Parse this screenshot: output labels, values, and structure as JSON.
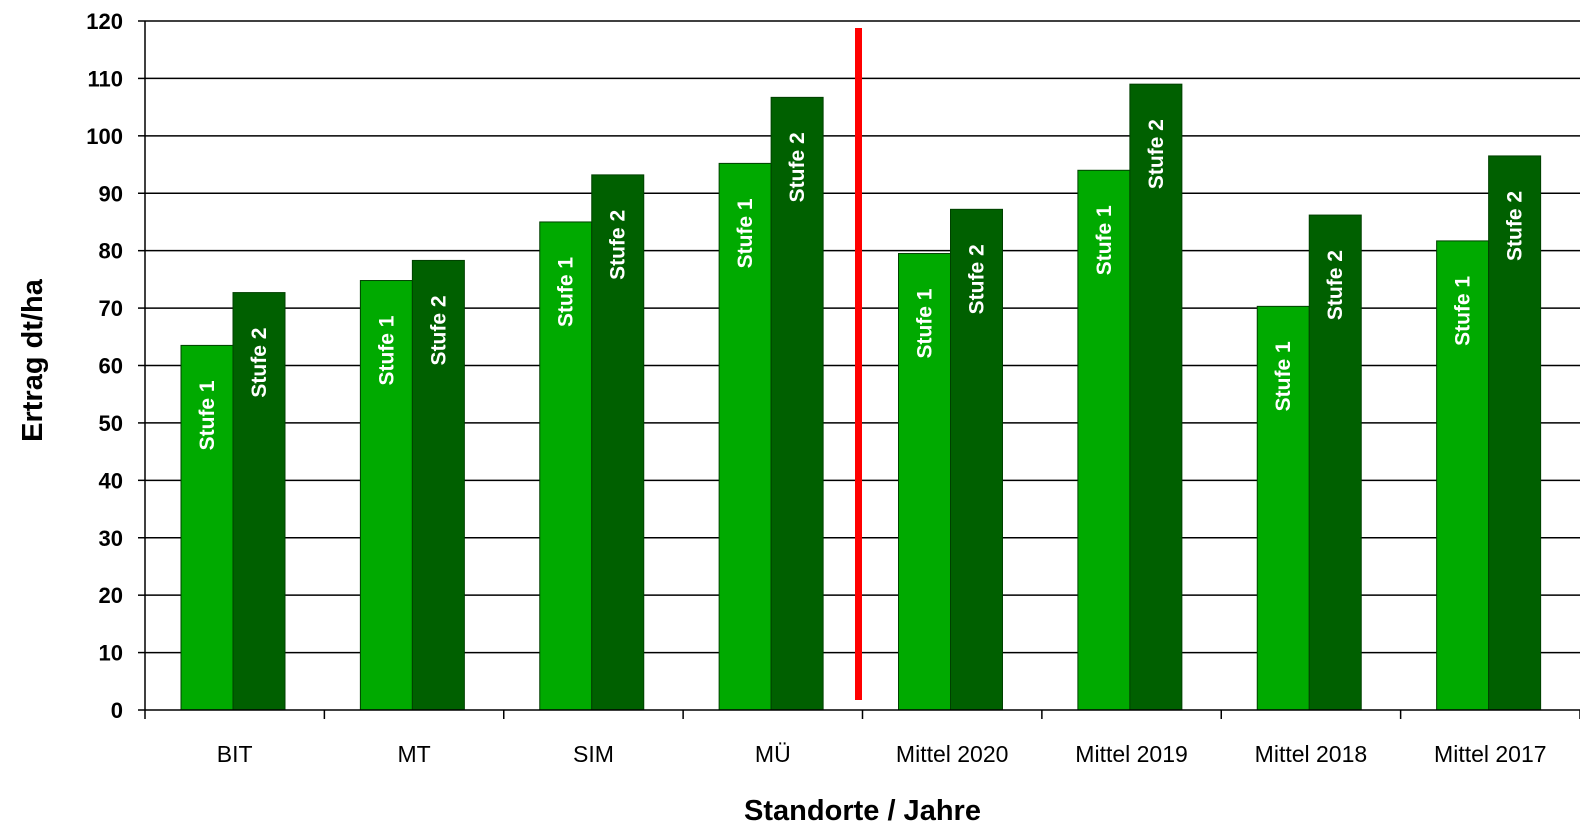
{
  "chart_data": {
    "type": "bar",
    "title": "",
    "xlabel": "Standorte / Jahre",
    "ylabel": "Ertrag dt/ha",
    "ylim": [
      0,
      120
    ],
    "yticks": [
      "0",
      "10",
      "20",
      "30",
      "40",
      "50",
      "60",
      "70",
      "80",
      "90",
      "100",
      "110",
      "120"
    ],
    "grid": "horizontal",
    "categories": [
      "BIT",
      "MT",
      "SIM",
      "MÜ",
      "Mittel 2020",
      "Mittel 2019",
      "Mittel 2018",
      "Mittel 2017"
    ],
    "series": [
      {
        "name": "Stufe 1",
        "color": "#00aa00",
        "values": [
          63.5,
          74.8,
          85.0,
          95.2,
          79.5,
          94.0,
          70.3,
          81.7
        ]
      },
      {
        "name": "Stufe 2",
        "color": "#006000",
        "values": [
          72.7,
          78.3,
          93.2,
          106.7,
          87.2,
          109.0,
          86.2,
          96.5
        ]
      }
    ],
    "separator": {
      "color": "#ff0000",
      "between_categories": [
        "MÜ",
        "Mittel 2020"
      ]
    }
  }
}
